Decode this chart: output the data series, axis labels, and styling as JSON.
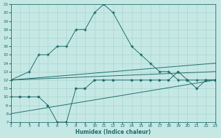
{
  "xlabel": "Humidex (Indice chaleur)",
  "bg_color": "#c5e8e5",
  "grid_color": "#a8d4d0",
  "line_color": "#1e6b6b",
  "xmin": 1,
  "xmax": 23,
  "ymin": 7,
  "ymax": 21,
  "line1_x": [
    1,
    3,
    4,
    5,
    6,
    7,
    8,
    9,
    10,
    11,
    12,
    14,
    15,
    16,
    17,
    18,
    19,
    20,
    21,
    22,
    23
  ],
  "line1_y": [
    12,
    13,
    15,
    15,
    16,
    16,
    18,
    18,
    20,
    21,
    20,
    16,
    15,
    14,
    13,
    13,
    12,
    12,
    12,
    12,
    12
  ],
  "line2_x": [
    1,
    2,
    3,
    4,
    5,
    6,
    7,
    8,
    9,
    10,
    11,
    12,
    14,
    15,
    16,
    17,
    18,
    19,
    20,
    21,
    22,
    23
  ],
  "line2_y": [
    10,
    10,
    10,
    10,
    9,
    7,
    7,
    11,
    11,
    12,
    12,
    12,
    12,
    12,
    12,
    12,
    12,
    13,
    12,
    11,
    12,
    12
  ],
  "line3_x": [
    1,
    23
  ],
  "line3_y": [
    12,
    14
  ],
  "line4_x": [
    1,
    23
  ],
  "line4_y": [
    12,
    13
  ],
  "line5_x": [
    1,
    23
  ],
  "line5_y": [
    8,
    12
  ]
}
